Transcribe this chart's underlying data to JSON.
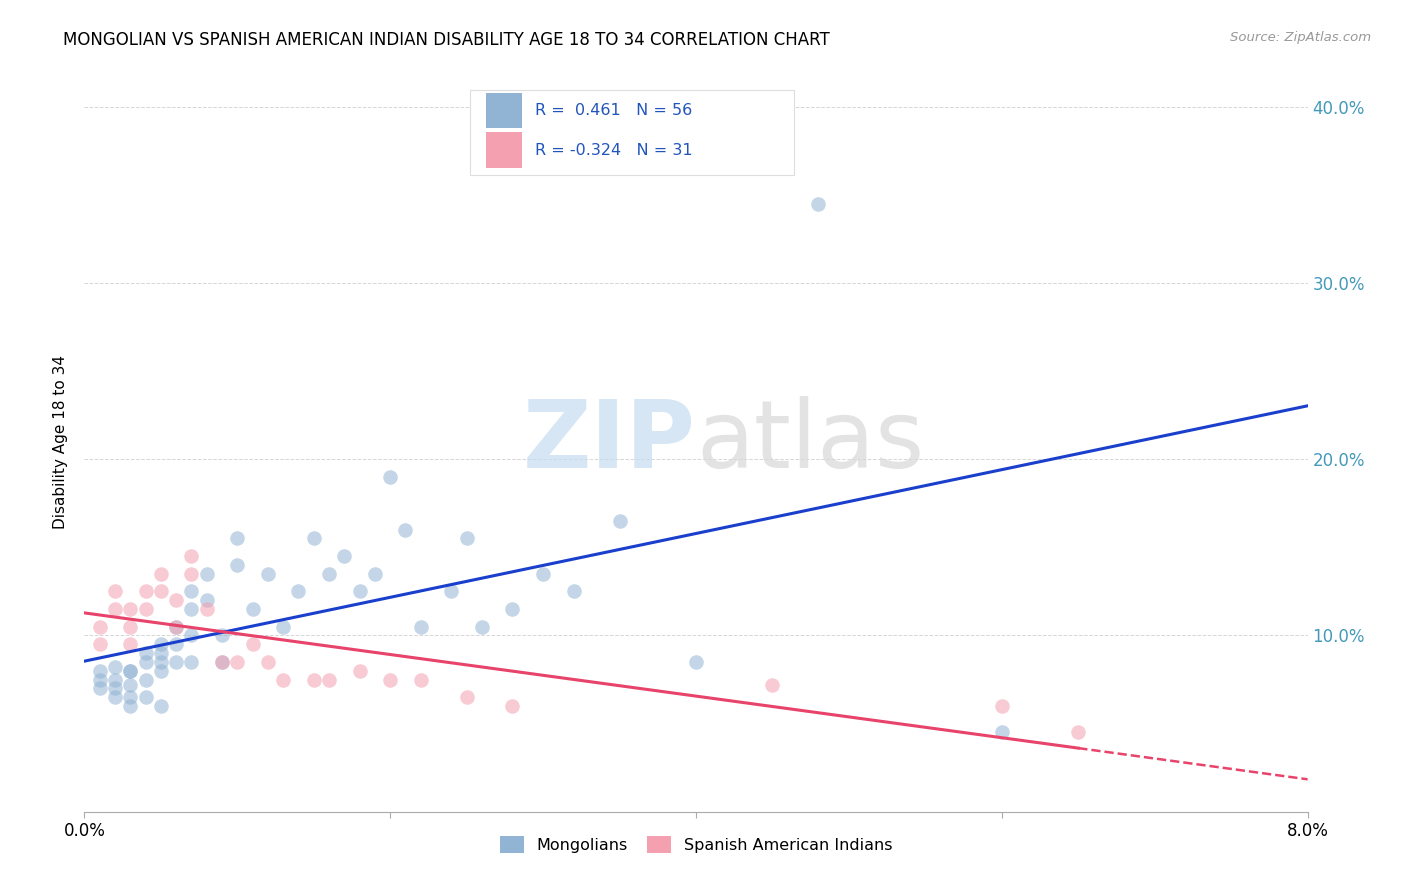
{
  "title": "MONGOLIAN VS SPANISH AMERICAN INDIAN DISABILITY AGE 18 TO 34 CORRELATION CHART",
  "source": "Source: ZipAtlas.com",
  "ylabel": "Disability Age 18 to 34",
  "legend_label1": "Mongolians",
  "legend_label2": "Spanish American Indians",
  "r1": 0.461,
  "n1": 56,
  "r2": -0.324,
  "n2": 31,
  "blue_color": "#92B4D4",
  "pink_color": "#F4A0B0",
  "line_blue": "#1A3FCC",
  "line_pink": "#E8436A",
  "mongolian_x": [
    0.001,
    0.001,
    0.001,
    0.002,
    0.002,
    0.002,
    0.002,
    0.003,
    0.003,
    0.003,
    0.003,
    0.003,
    0.004,
    0.004,
    0.004,
    0.004,
    0.005,
    0.005,
    0.005,
    0.005,
    0.005,
    0.006,
    0.006,
    0.006,
    0.007,
    0.007,
    0.007,
    0.007,
    0.008,
    0.008,
    0.009,
    0.009,
    0.01,
    0.01,
    0.011,
    0.012,
    0.013,
    0.014,
    0.015,
    0.016,
    0.017,
    0.018,
    0.019,
    0.02,
    0.021,
    0.022,
    0.024,
    0.025,
    0.026,
    0.028,
    0.03,
    0.032,
    0.035,
    0.04,
    0.048,
    0.06
  ],
  "mongolian_y": [
    0.075,
    0.08,
    0.07,
    0.082,
    0.075,
    0.07,
    0.065,
    0.08,
    0.08,
    0.072,
    0.065,
    0.06,
    0.09,
    0.085,
    0.075,
    0.065,
    0.095,
    0.09,
    0.085,
    0.08,
    0.06,
    0.105,
    0.095,
    0.085,
    0.125,
    0.115,
    0.1,
    0.085,
    0.135,
    0.12,
    0.1,
    0.085,
    0.155,
    0.14,
    0.115,
    0.135,
    0.105,
    0.125,
    0.155,
    0.135,
    0.145,
    0.125,
    0.135,
    0.19,
    0.16,
    0.105,
    0.125,
    0.155,
    0.105,
    0.115,
    0.135,
    0.125,
    0.165,
    0.085,
    0.345,
    0.045
  ],
  "spanish_x": [
    0.001,
    0.001,
    0.002,
    0.002,
    0.003,
    0.003,
    0.003,
    0.004,
    0.004,
    0.005,
    0.005,
    0.006,
    0.006,
    0.007,
    0.007,
    0.008,
    0.009,
    0.01,
    0.011,
    0.012,
    0.013,
    0.015,
    0.016,
    0.018,
    0.02,
    0.022,
    0.025,
    0.028,
    0.045,
    0.06,
    0.065
  ],
  "spanish_y": [
    0.105,
    0.095,
    0.125,
    0.115,
    0.115,
    0.105,
    0.095,
    0.125,
    0.115,
    0.135,
    0.125,
    0.12,
    0.105,
    0.145,
    0.135,
    0.115,
    0.085,
    0.085,
    0.095,
    0.085,
    0.075,
    0.075,
    0.075,
    0.08,
    0.075,
    0.075,
    0.065,
    0.06,
    0.072,
    0.06,
    0.045
  ],
  "xlim": [
    0.0,
    0.08
  ],
  "ylim": [
    0.0,
    0.42
  ],
  "y_ticks": [
    0.0,
    0.1,
    0.2,
    0.3,
    0.4
  ],
  "y_tick_labels": [
    "",
    "10.0%",
    "20.0%",
    "30.0%",
    "40.0%"
  ],
  "x_ticks": [
    0.0,
    0.02,
    0.04,
    0.06,
    0.08
  ],
  "x_tick_labels": [
    "0.0%",
    "",
    "",
    "",
    "8.0%"
  ]
}
